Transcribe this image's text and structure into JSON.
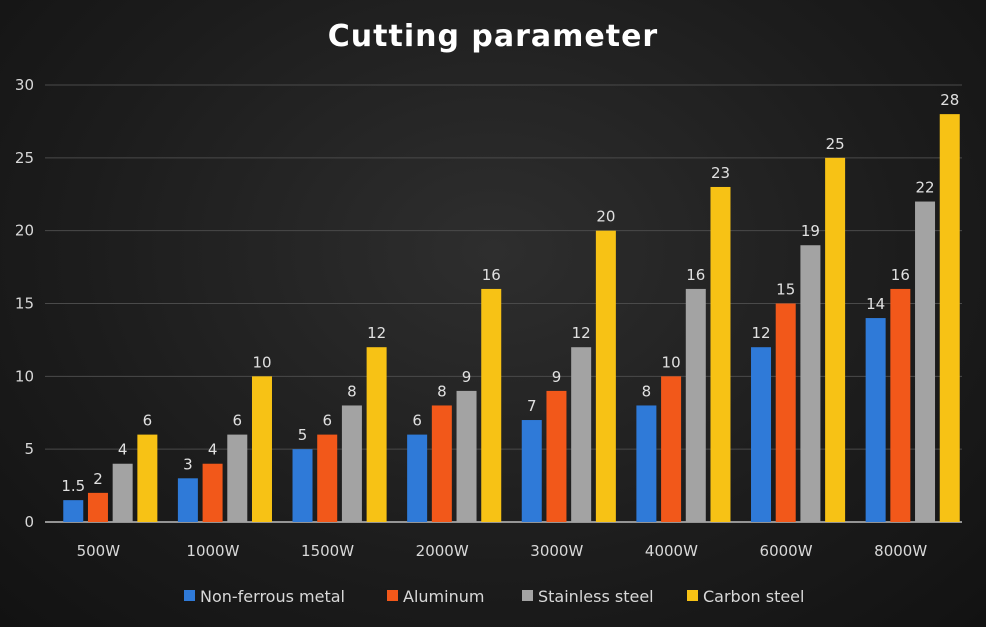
{
  "chart_data": {
    "type": "bar",
    "title": "Cutting parameter",
    "xlabel": "",
    "ylabel": "",
    "ylim": [
      0,
      30
    ],
    "yticks": [
      0,
      5,
      10,
      15,
      20,
      25,
      30
    ],
    "grid": true,
    "legend_position": "bottom",
    "categories": [
      "500W",
      "1000W",
      "1500W",
      "2000W",
      "3000W",
      "4000W",
      "6000W",
      "8000W"
    ],
    "series": [
      {
        "name": "Non-ferrous metal",
        "color": "#2f7ad8",
        "values": [
          1.5,
          3,
          5,
          6,
          7,
          8,
          12,
          14
        ]
      },
      {
        "name": "Aluminum",
        "color": "#f2581a",
        "values": [
          2,
          4,
          6,
          8,
          9,
          10,
          15,
          16
        ]
      },
      {
        "name": "Stainless steel",
        "color": "#a3a3a3",
        "values": [
          4,
          6,
          8,
          9,
          12,
          16,
          19,
          22
        ]
      },
      {
        "name": "Carbon steel",
        "color": "#f7c215",
        "values": [
          6,
          10,
          12,
          16,
          20,
          23,
          25,
          28
        ]
      }
    ]
  }
}
